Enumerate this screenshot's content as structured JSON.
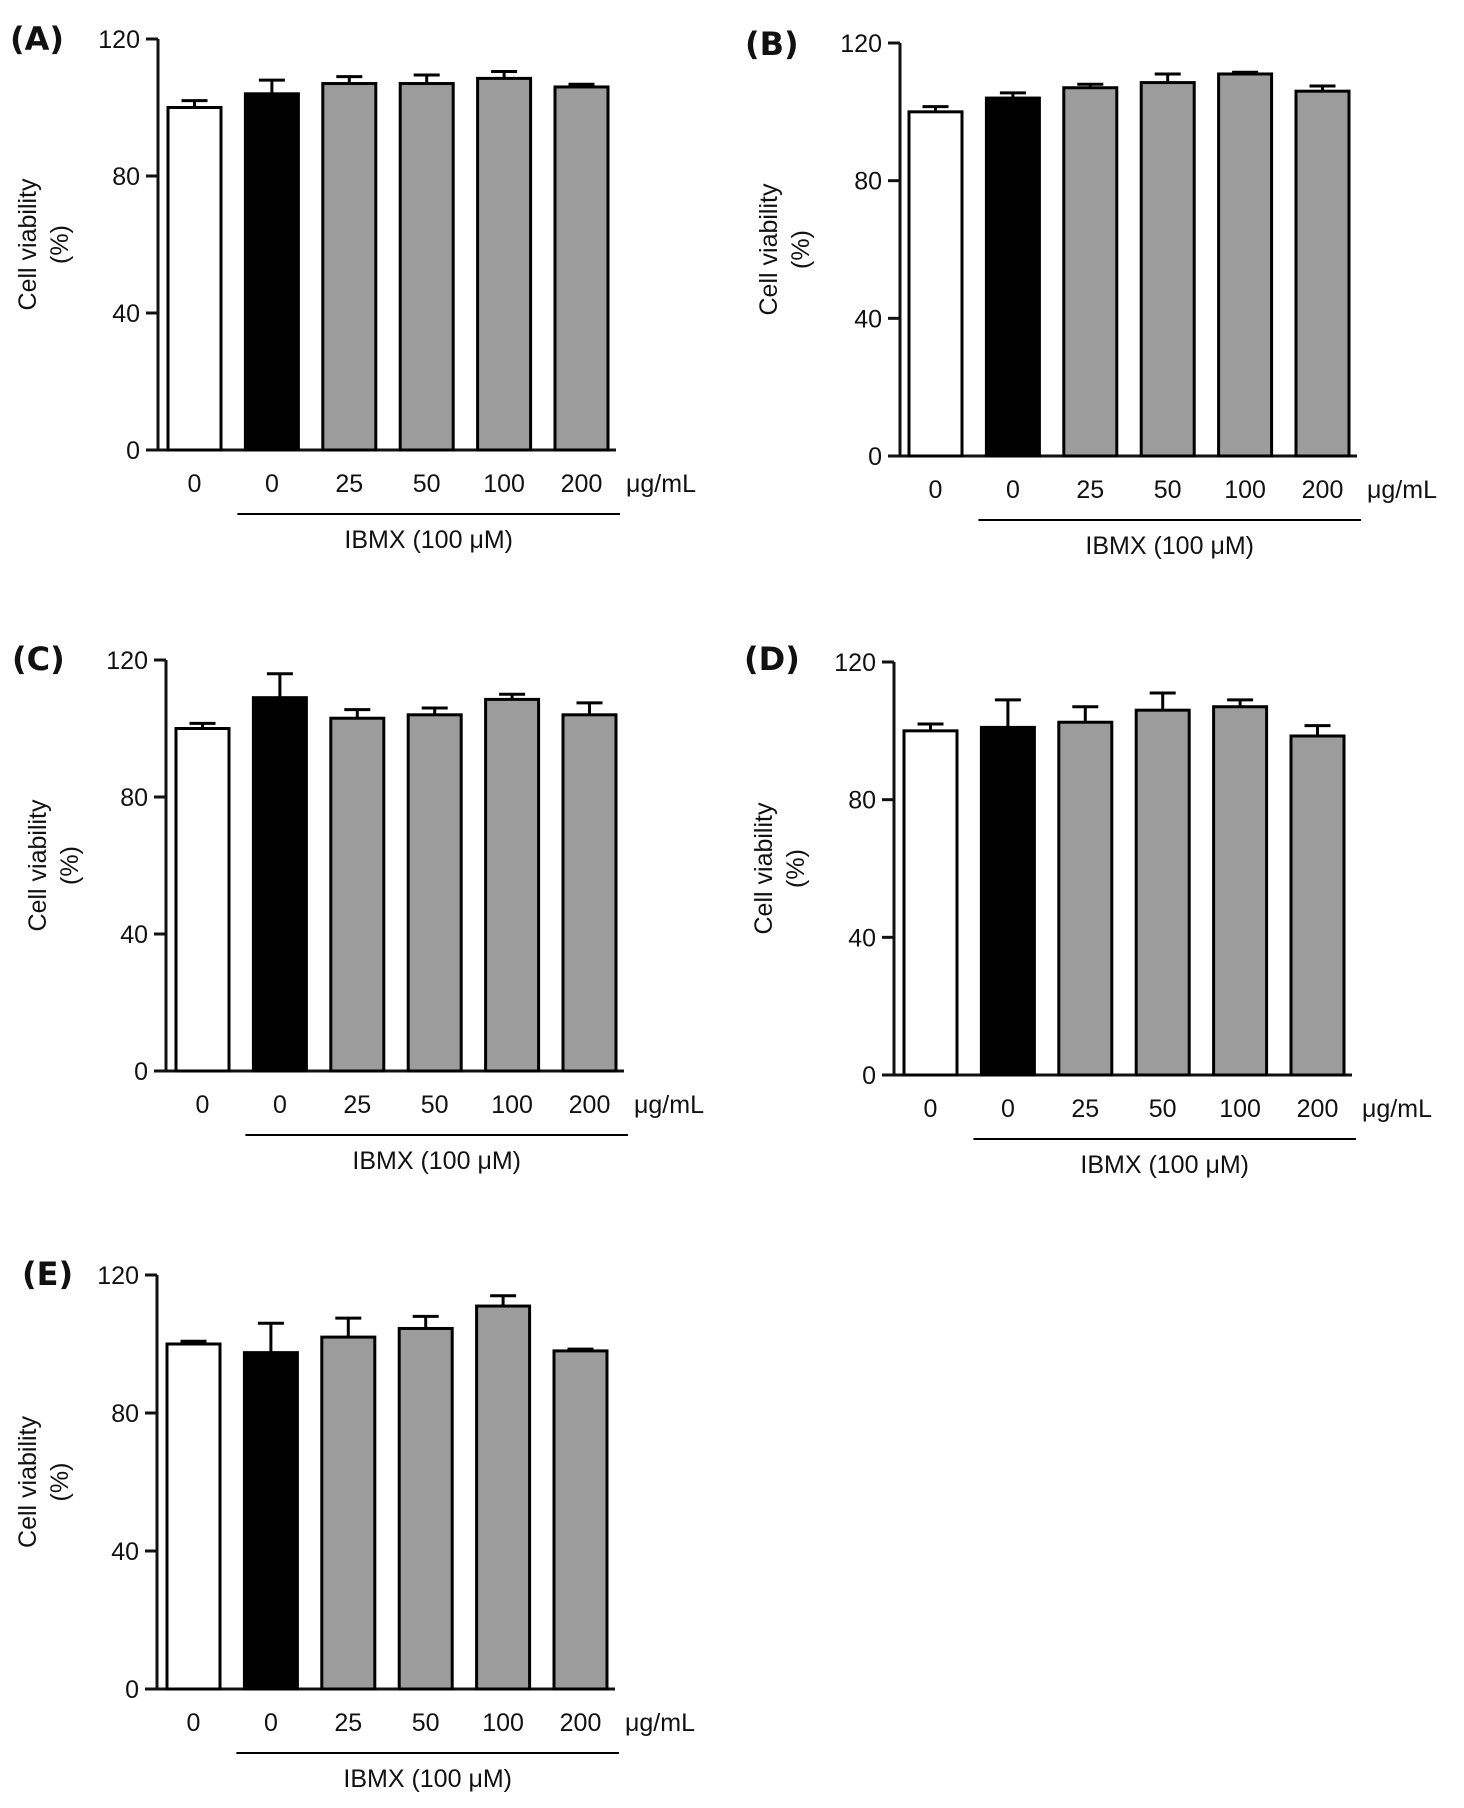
{
  "chart_data": [
    {
      "panel_label": "(A)",
      "type": "bar",
      "ylabel": "Cell viability",
      "ylabel_unit": "(%)",
      "ylim": [
        0,
        120
      ],
      "yticks": [
        "0",
        "40",
        "80",
        "120"
      ],
      "categories": [
        "0",
        "0",
        "25",
        "50",
        "100",
        "200"
      ],
      "x_unit": "μg/mL",
      "group_label": "IBMX (100 μM)",
      "values": [
        100,
        104,
        107,
        107,
        108.5,
        106
      ],
      "errors": [
        2,
        4,
        2,
        2.5,
        2,
        0.8
      ],
      "fills": [
        "white",
        "black",
        "gray",
        "gray",
        "gray",
        "gray"
      ]
    },
    {
      "panel_label": "(B)",
      "type": "bar",
      "ylabel": "Cell viability",
      "ylabel_unit": "(%)",
      "ylim": [
        0,
        120
      ],
      "yticks": [
        "0",
        "40",
        "80",
        "120"
      ],
      "categories": [
        "0",
        "0",
        "25",
        "50",
        "100",
        "200"
      ],
      "x_unit": "μg/mL",
      "group_label": "IBMX (100 μM)",
      "values": [
        100,
        104,
        107,
        108.5,
        111,
        106
      ],
      "errors": [
        1.5,
        1.5,
        1,
        2.5,
        0.5,
        1.5
      ],
      "fills": [
        "white",
        "black",
        "gray",
        "gray",
        "gray",
        "gray"
      ]
    },
    {
      "panel_label": "(C)",
      "type": "bar",
      "ylabel": "Cell viability",
      "ylabel_unit": "(%)",
      "ylim": [
        0,
        120
      ],
      "yticks": [
        "0",
        "40",
        "80",
        "120"
      ],
      "categories": [
        "0",
        "0",
        "25",
        "50",
        "100",
        "200"
      ],
      "x_unit": "μg/mL",
      "group_label": "IBMX (100 μM)",
      "values": [
        100,
        109,
        103,
        104,
        108.5,
        104
      ],
      "errors": [
        1.5,
        7,
        2.5,
        2,
        1.5,
        3.5
      ],
      "fills": [
        "white",
        "black",
        "gray",
        "gray",
        "gray",
        "gray"
      ]
    },
    {
      "panel_label": "(D)",
      "type": "bar",
      "ylabel": "Cell viability",
      "ylabel_unit": "(%)",
      "ylim": [
        0,
        120
      ],
      "yticks": [
        "0",
        "40",
        "80",
        "120"
      ],
      "categories": [
        "0",
        "0",
        "25",
        "50",
        "100",
        "200"
      ],
      "x_unit": "μg/mL",
      "group_label": "IBMX (100 μM)",
      "values": [
        100,
        101,
        102.5,
        106,
        107,
        98.5
      ],
      "errors": [
        2,
        8,
        4.5,
        5,
        2,
        3
      ],
      "fills": [
        "white",
        "black",
        "gray",
        "gray",
        "gray",
        "gray"
      ]
    },
    {
      "panel_label": "(E)",
      "type": "bar",
      "ylabel": "Cell viability",
      "ylabel_unit": "(%)",
      "ylim": [
        0,
        120
      ],
      "yticks": [
        "0",
        "40",
        "80",
        "120"
      ],
      "categories": [
        "0",
        "0",
        "25",
        "50",
        "100",
        "200"
      ],
      "x_unit": "μg/mL",
      "group_label": "IBMX (100 μM)",
      "values": [
        100,
        97.5,
        102,
        104.5,
        111,
        98
      ],
      "errors": [
        0.8,
        8.5,
        5.5,
        3.5,
        3,
        0.5
      ],
      "fills": [
        "white",
        "black",
        "gray",
        "gray",
        "gray",
        "gray"
      ]
    }
  ],
  "colors": {
    "white": "#ffffff",
    "black": "#000000",
    "gray": "#9c9c9c",
    "axis": "#111111"
  }
}
